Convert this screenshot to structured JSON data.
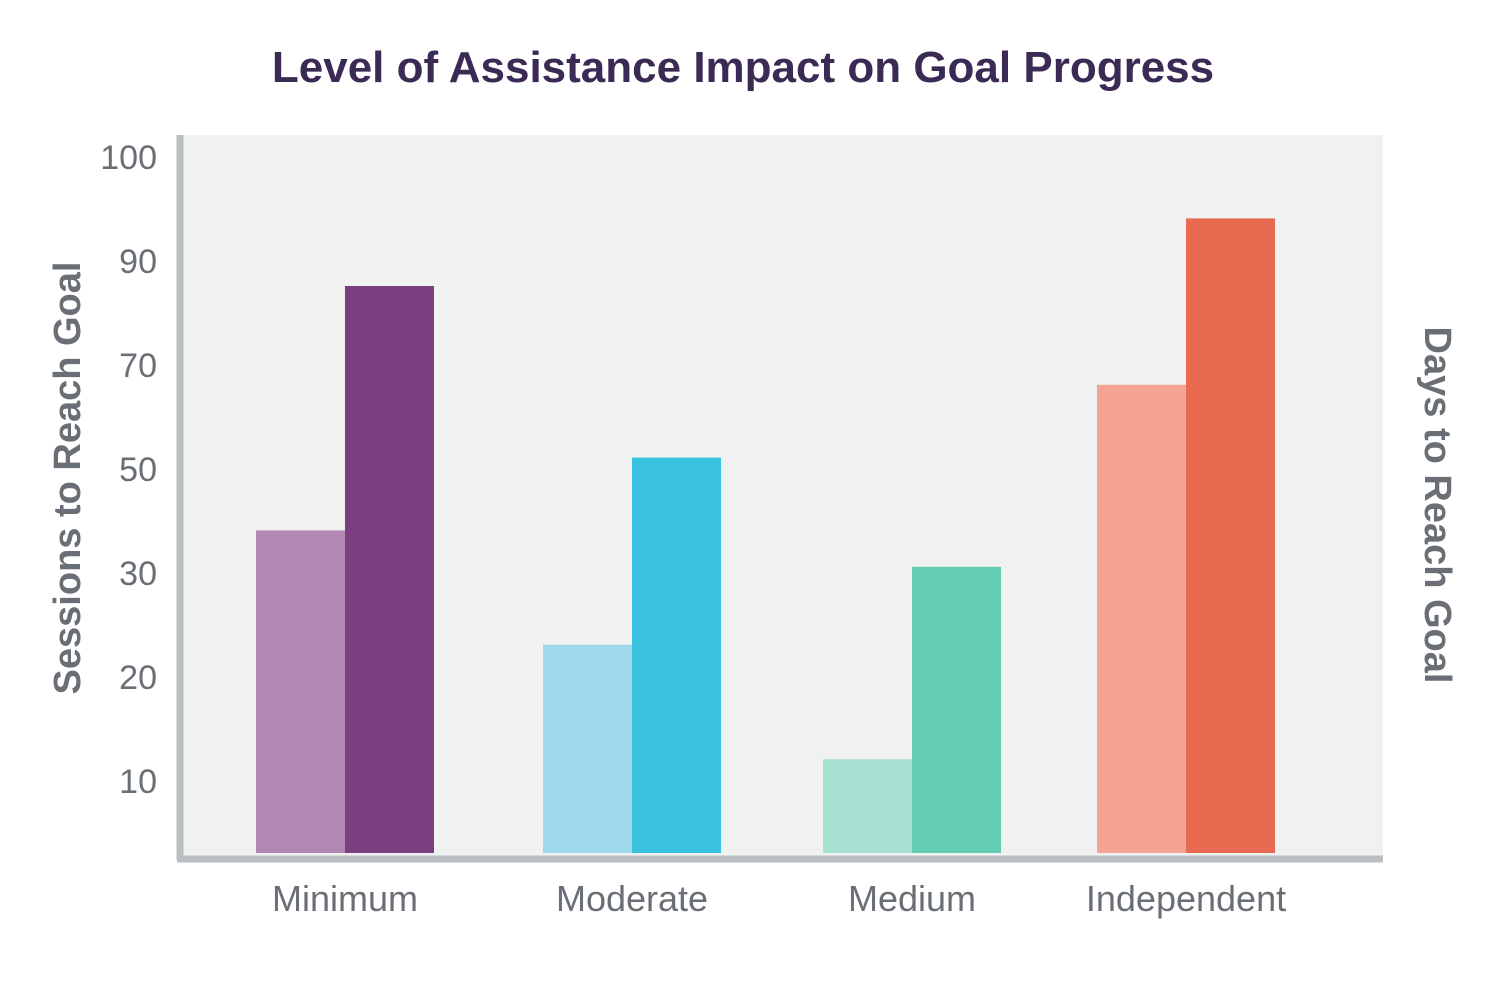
{
  "chart_data": {
    "type": "bar",
    "title": "Level of Assistance Impact on Goal Progress",
    "ylabel": "Sessions to Reach Goal",
    "ylabel_right": "Days to Reach Goal",
    "categories": [
      "Minimum",
      "Moderate",
      "Medium",
      "Independent"
    ],
    "y_ticks": [
      "100",
      "90",
      "70",
      "50",
      "30",
      "20",
      "10"
    ],
    "series": [
      {
        "values": [
          38,
          23,
          12,
          66
        ]
      },
      {
        "values": [
          85,
          52,
          31,
          94
        ]
      }
    ],
    "bar_colors": [
      [
        "#b088b3",
        "#7b3f7f"
      ],
      [
        "#9ed8eb",
        "#3ac2e1"
      ],
      [
        "#a8e2d2",
        "#63cdb3"
      ],
      [
        "#f5a493",
        "#e86a50"
      ]
    ],
    "plot_background": "#f0f2f1",
    "axis_color": "#bcbfc1",
    "grid": false,
    "legend": "none"
  }
}
